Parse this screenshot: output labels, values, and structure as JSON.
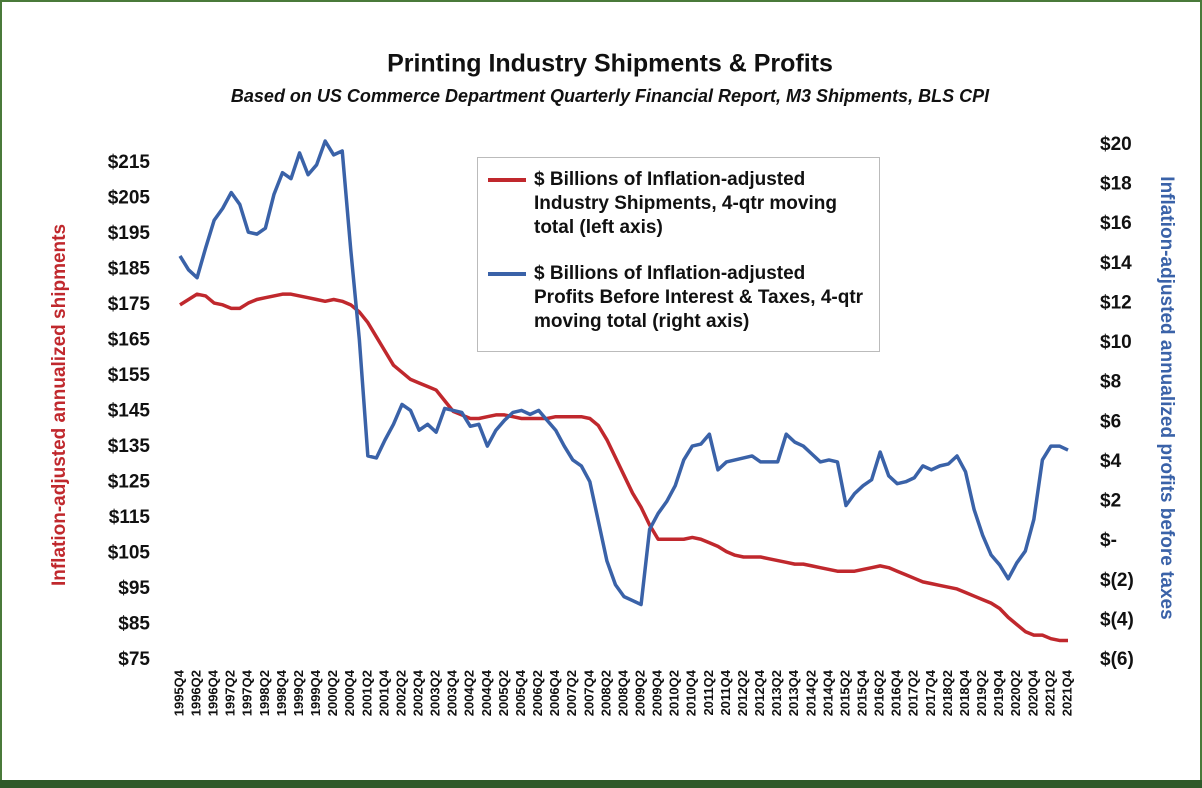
{
  "chart_data": {
    "type": "line",
    "title": "Printing Industry Shipments & Profits",
    "subtitle": "Based on US Commerce Department Quarterly Financial Report, M3 Shipments, BLS CPI",
    "y_label": "Inflation-adjusted annualized shipments",
    "y2_label": "Inflation-adjusted annualized profits before taxes",
    "categories": [
      "1995Q4",
      null,
      "1996Q2",
      null,
      "1996Q4",
      null,
      "1997Q2",
      null,
      "1997Q4",
      null,
      "1998Q2",
      null,
      "1998Q4",
      null,
      "1999Q2",
      null,
      "1999Q4",
      null,
      "2000Q2",
      null,
      "2000Q4",
      null,
      "2001Q2",
      null,
      "2001Q4",
      null,
      "2002Q2",
      null,
      "2002Q4",
      null,
      "2003Q2",
      null,
      "2003Q4",
      null,
      "2004Q2",
      null,
      "2004Q4",
      null,
      "2005Q2",
      null,
      "2005Q4",
      null,
      "2006Q2",
      null,
      "2006Q4",
      null,
      "2007Q2",
      null,
      "2007Q4",
      null,
      "2008Q2",
      null,
      "2008Q4",
      null,
      "2009Q2",
      null,
      "2009Q4",
      null,
      "2010Q2",
      null,
      "2010Q4",
      null,
      "2011Q2",
      null,
      "2011Q4",
      null,
      "2012Q2",
      null,
      "2012Q4",
      null,
      "2013Q2",
      null,
      "2013Q4",
      null,
      "2014Q2",
      null,
      "2014Q4",
      null,
      "2015Q2",
      null,
      "2015Q4",
      null,
      "2016Q2",
      null,
      "2016Q4",
      null,
      "2017Q2",
      null,
      "2017Q4",
      null,
      "2018Q2",
      null,
      "2018Q4",
      null,
      "2019Q2",
      null,
      "2019Q4",
      null,
      "2020Q2",
      null,
      "2020Q4",
      null,
      "2021Q2",
      null,
      "2021Q4"
    ],
    "series": [
      {
        "name": "$ Billions of Inflation-adjusted Industry Shipments, 4-qtr moving total (left axis)",
        "color": "#c0282d",
        "axis": "y",
        "values": [
          175,
          176.5,
          178,
          177.5,
          175.5,
          175,
          174,
          174,
          175.5,
          176.5,
          177,
          177.5,
          178,
          178,
          177.5,
          177,
          176.5,
          176,
          176.5,
          176,
          175,
          173,
          170,
          166,
          162,
          158,
          156,
          154,
          153,
          152,
          151,
          148,
          145,
          144,
          143,
          143,
          143.5,
          144,
          144,
          143.5,
          143,
          143,
          143,
          143,
          143.5,
          143.5,
          143.5,
          143.5,
          143,
          141,
          137,
          132,
          127,
          122,
          118,
          113,
          109,
          109,
          109,
          109,
          109.5,
          109,
          108,
          107,
          105.5,
          104.5,
          104,
          104,
          104,
          103.5,
          103,
          102.5,
          102,
          102,
          101.5,
          101,
          100.5,
          100,
          100,
          100,
          100.5,
          101,
          101.5,
          101,
          100,
          99,
          98,
          97,
          96.5,
          96,
          95.5,
          95,
          94,
          93,
          92,
          91,
          89.5,
          87,
          85,
          83,
          82,
          82,
          81,
          80.5,
          80.5
        ]
      },
      {
        "name": "$ Billions of Inflation-adjusted Profits Before Interest & Taxes, 4-qtr moving total (right axis)",
        "color": "#3a62a8",
        "axis": "y2",
        "values": [
          14.4,
          13.7,
          13.3,
          14.8,
          16.2,
          16.8,
          17.6,
          17.0,
          15.6,
          15.5,
          15.8,
          17.5,
          18.6,
          18.3,
          19.6,
          18.5,
          19.0,
          20.2,
          19.5,
          19.7,
          14.7,
          10.2,
          4.3,
          4.2,
          5.1,
          5.9,
          6.9,
          6.6,
          5.6,
          5.9,
          5.5,
          6.7,
          6.6,
          6.5,
          5.8,
          5.9,
          4.8,
          5.6,
          6.1,
          6.5,
          6.6,
          6.4,
          6.6,
          6.1,
          5.6,
          4.8,
          4.1,
          3.8,
          3.0,
          1.0,
          -1.0,
          -2.2,
          -2.8,
          -3.0,
          -3.2,
          0.6,
          1.4,
          2.0,
          2.8,
          4.1,
          4.8,
          4.9,
          5.4,
          3.6,
          4.0,
          4.1,
          4.2,
          4.3,
          4.0,
          4.0,
          4.0,
          5.4,
          5.0,
          4.8,
          4.4,
          4.0,
          4.1,
          4.0,
          1.8,
          2.4,
          2.8,
          3.1,
          4.5,
          3.3,
          2.9,
          3.0,
          3.2,
          3.8,
          3.6,
          3.8,
          3.9,
          4.3,
          3.5,
          1.6,
          0.3,
          -0.7,
          -1.2,
          -1.9,
          -1.1,
          -0.5,
          1.1,
          4.1,
          4.8,
          4.8,
          4.6
        ]
      }
    ],
    "ylim": [
      75,
      220
    ],
    "yticks": [
      {
        "value": 75,
        "label": "$75"
      },
      {
        "value": 85,
        "label": "$85"
      },
      {
        "value": 95,
        "label": "$95"
      },
      {
        "value": 105,
        "label": "$105"
      },
      {
        "value": 115,
        "label": "$115"
      },
      {
        "value": 125,
        "label": "$125"
      },
      {
        "value": 135,
        "label": "$135"
      },
      {
        "value": 145,
        "label": "$145"
      },
      {
        "value": 155,
        "label": "$155"
      },
      {
        "value": 165,
        "label": "$165"
      },
      {
        "value": 175,
        "label": "$175"
      },
      {
        "value": 185,
        "label": "$185"
      },
      {
        "value": 195,
        "label": "$195"
      },
      {
        "value": 205,
        "label": "$205"
      },
      {
        "value": 215,
        "label": "$215"
      }
    ],
    "y2lim": [
      -6,
      20
    ],
    "y2ticks": [
      {
        "value": -6,
        "label": "$(6)"
      },
      {
        "value": -4,
        "label": "$(4)"
      },
      {
        "value": -2,
        "label": "$(2)"
      },
      {
        "value": 0,
        "label": "$-"
      },
      {
        "value": 2,
        "label": "$2"
      },
      {
        "value": 4,
        "label": "$4"
      },
      {
        "value": 6,
        "label": "$6"
      },
      {
        "value": 8,
        "label": "$8"
      },
      {
        "value": 10,
        "label": "$10"
      },
      {
        "value": 12,
        "label": "$12"
      },
      {
        "value": 14,
        "label": "$14"
      },
      {
        "value": 16,
        "label": "$16"
      },
      {
        "value": 18,
        "label": "$18"
      },
      {
        "value": 20,
        "label": "$20"
      }
    ],
    "grid": false
  }
}
